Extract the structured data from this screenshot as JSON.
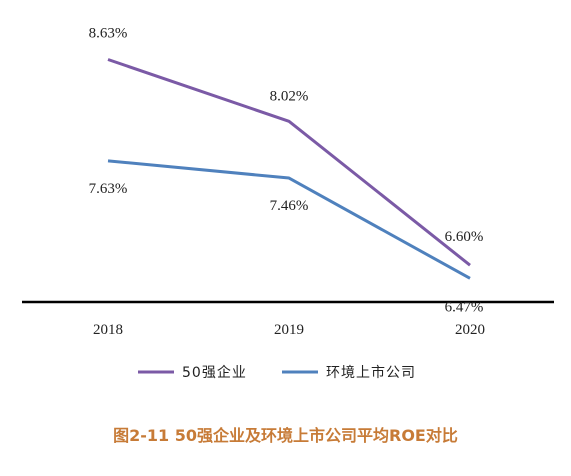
{
  "chart_data": {
    "type": "line",
    "categories": [
      "2018",
      "2019",
      "2020"
    ],
    "series": [
      {
        "name": "50强企业",
        "values": [
          8.63,
          8.02,
          6.6
        ],
        "labels": [
          "8.63%",
          "8.02%",
          "6.60%"
        ],
        "color": "#7b5aa6"
      },
      {
        "name": "环境上市公司",
        "values": [
          7.63,
          7.46,
          6.47
        ],
        "labels": [
          "7.63%",
          "7.46%",
          "6.47%"
        ],
        "color": "#4f81bd"
      }
    ],
    "ylim": [
      6.0,
      9.0
    ],
    "grid": false,
    "legend_position": "bottom",
    "title": "图2-11 50强企业及环境上市公司平均ROE对比"
  },
  "colors": {
    "caption": "#c77b37",
    "axis": "#000000"
  }
}
